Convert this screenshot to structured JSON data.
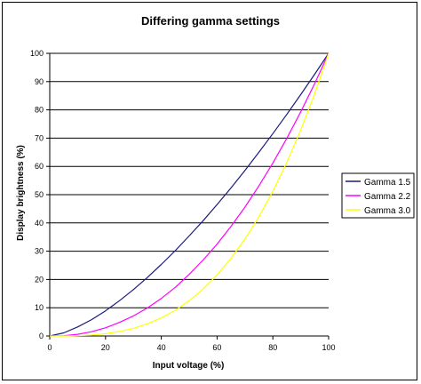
{
  "chart_data": {
    "type": "line",
    "title": "Differing gamma settings",
    "xlabel": "Input voltage (%)",
    "ylabel": "Display brightness (%)",
    "xlim": [
      0,
      100
    ],
    "ylim": [
      0,
      100
    ],
    "x_ticks": [
      0,
      20,
      40,
      60,
      80,
      100
    ],
    "y_ticks": [
      0,
      10,
      20,
      30,
      40,
      50,
      60,
      70,
      80,
      90,
      100
    ],
    "grid": "horizontal",
    "legend_position": "right",
    "x": [
      0,
      5,
      10,
      15,
      20,
      25,
      30,
      35,
      40,
      45,
      50,
      55,
      60,
      65,
      70,
      75,
      80,
      85,
      90,
      95,
      100
    ],
    "series": [
      {
        "name": "Gamma 1.5",
        "color": "#1a1a80",
        "values": [
          0,
          1.1,
          3.2,
          5.8,
          8.9,
          12.5,
          16.4,
          20.7,
          25.3,
          30.2,
          35.4,
          40.8,
          46.5,
          52.4,
          58.6,
          65.0,
          71.6,
          78.4,
          85.4,
          92.6,
          100
        ]
      },
      {
        "name": "Gamma 2.2",
        "color": "#ff00ff",
        "values": [
          0,
          0.1,
          0.6,
          1.5,
          2.9,
          4.8,
          7.1,
          9.9,
          13.3,
          17.2,
          21.8,
          26.9,
          32.5,
          38.8,
          45.6,
          53.1,
          61.2,
          69.9,
          79.3,
          89.3,
          100
        ]
      },
      {
        "name": "Gamma 3.0",
        "color": "#ffff00",
        "values": [
          0,
          0.0,
          0.1,
          0.3,
          0.8,
          1.6,
          2.7,
          4.3,
          6.4,
          9.1,
          12.5,
          16.6,
          21.6,
          27.5,
          34.3,
          42.2,
          51.2,
          61.4,
          72.9,
          85.7,
          100
        ]
      }
    ]
  }
}
